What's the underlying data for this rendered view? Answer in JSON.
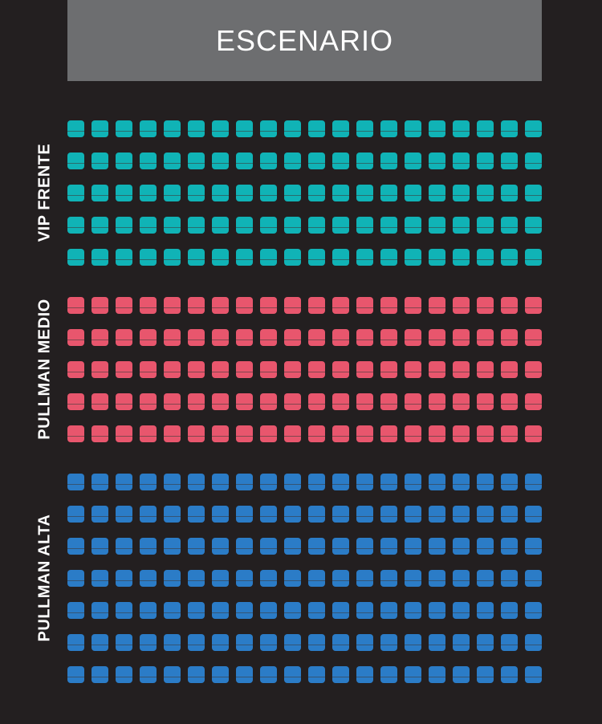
{
  "stage": {
    "label": "ESCENARIO"
  },
  "sections": [
    {
      "label": "VIP FRENTE",
      "rows": 5,
      "seats_per_row": 20,
      "color": "#10b3b6"
    },
    {
      "label": "PULLMAN MEDIO",
      "rows": 5,
      "seats_per_row": 20,
      "color": "#e8566d"
    },
    {
      "label": "PULLMAN  ALTA",
      "rows": 7,
      "seats_per_row": 20,
      "color": "#2b7cc7"
    }
  ]
}
